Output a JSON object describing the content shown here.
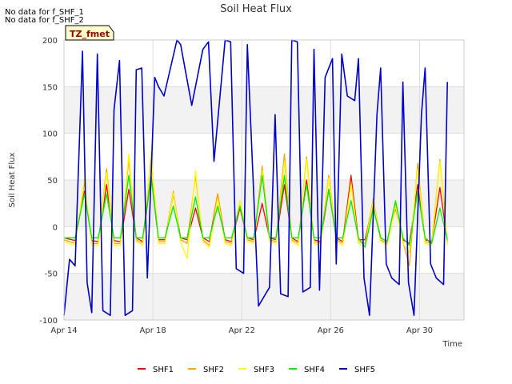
{
  "notes": [
    "No data for f_SHF_1",
    "No data for f_SHF_2"
  ],
  "badge": "TZ_fmet",
  "chart_data": {
    "type": "line",
    "title": "Soil Heat Flux",
    "xlabel": "Time",
    "ylabel": "Soil Heat Flux",
    "ylim": [
      -100,
      200
    ],
    "xlim": [
      "2024-04-14",
      "2024-05-02"
    ],
    "x_ticks": [
      "Apr 14",
      "Apr 18",
      "Apr 22",
      "Apr 26",
      "Apr 30"
    ],
    "y_ticks": [
      -100,
      -50,
      0,
      50,
      100,
      150,
      200
    ],
    "grid": true,
    "legend_position": "bottom",
    "series": [
      {
        "name": "SHF1",
        "color": "#ff0000",
        "x": [
          "2024-04-14",
          "2024-04-14T12:00",
          "2024-04-14T22:00",
          "2024-04-15T06:00",
          "2024-04-15T13:00",
          "2024-04-15T22:00",
          "2024-04-16T06:00",
          "2024-04-16T13:00",
          "2024-04-16T22:00",
          "2024-04-17T06:00",
          "2024-04-17T13:00",
          "2024-04-17T22:00",
          "2024-04-18T06:00",
          "2024-04-18T13:00",
          "2024-04-18T22:00",
          "2024-04-19T06:00",
          "2024-04-19T13:00",
          "2024-04-19T22:00",
          "2024-04-20T06:00",
          "2024-04-20T13:00",
          "2024-04-20T22:00",
          "2024-04-21T06:00",
          "2024-04-21T13:00",
          "2024-04-21T22:00",
          "2024-04-22T06:00",
          "2024-04-22T13:00",
          "2024-04-22T22:00",
          "2024-04-23T06:00",
          "2024-04-23T13:00",
          "2024-04-23T22:00",
          "2024-04-24T06:00",
          "2024-04-24T13:00",
          "2024-04-24T22:00",
          "2024-04-25T06:00",
          "2024-04-25T13:00",
          "2024-04-25T22:00",
          "2024-04-26T06:00",
          "2024-04-26T13:00",
          "2024-04-26T22:00",
          "2024-04-27T06:00",
          "2024-04-27T13:00",
          "2024-04-27T22:00",
          "2024-04-28T06:00",
          "2024-04-28T13:00",
          "2024-04-28T22:00",
          "2024-04-29T06:00",
          "2024-04-29T13:00",
          "2024-04-29T22:00",
          "2024-04-30T06:00",
          "2024-04-30T13:00",
          "2024-04-30T22:00",
          "2024-05-01T06:00"
        ],
        "values": [
          -12,
          -15,
          38,
          -15,
          -16,
          45,
          -15,
          -16,
          40,
          -12,
          -16,
          55,
          -14,
          -14,
          35,
          -12,
          -14,
          20,
          -12,
          -16,
          35,
          -14,
          -16,
          20,
          -12,
          -14,
          25,
          -12,
          -14,
          45,
          -12,
          -16,
          50,
          -14,
          -16,
          40,
          -12,
          -16,
          55,
          -14,
          -14,
          25,
          -12,
          -16,
          20,
          -14,
          -18,
          45,
          -14,
          -16,
          42,
          -16
        ]
      },
      {
        "name": "SHF2",
        "color": "#ffa500",
        "x": [
          "2024-04-14",
          "2024-04-14T12:00",
          "2024-04-14T22:00",
          "2024-04-15T06:00",
          "2024-04-15T13:00",
          "2024-04-15T22:00",
          "2024-04-16T06:00",
          "2024-04-16T13:00",
          "2024-04-16T22:00",
          "2024-04-17T06:00",
          "2024-04-17T13:00",
          "2024-04-17T22:00",
          "2024-04-18T06:00",
          "2024-04-18T13:00",
          "2024-04-18T22:00",
          "2024-04-19T06:00",
          "2024-04-19T13:00",
          "2024-04-19T22:00",
          "2024-04-20T06:00",
          "2024-04-20T13:00",
          "2024-04-20T22:00",
          "2024-04-21T06:00",
          "2024-04-21T13:00",
          "2024-04-21T22:00",
          "2024-04-22T06:00",
          "2024-04-22T13:00",
          "2024-04-22T22:00",
          "2024-04-23T06:00",
          "2024-04-23T13:00",
          "2024-04-23T22:00",
          "2024-04-24T06:00",
          "2024-04-24T13:00",
          "2024-04-24T22:00",
          "2024-04-25T06:00",
          "2024-04-25T13:00",
          "2024-04-25T22:00",
          "2024-04-26T06:00",
          "2024-04-26T13:00",
          "2024-04-26T22:00",
          "2024-04-27T06:00",
          "2024-04-27T13:00",
          "2024-04-27T22:00",
          "2024-04-28T06:00",
          "2024-04-28T13:00",
          "2024-04-28T22:00",
          "2024-04-29T06:00",
          "2024-04-29T13:00",
          "2024-04-29T22:00",
          "2024-04-30T06:00",
          "2024-04-30T13:00",
          "2024-04-30T22:00",
          "2024-05-01T06:00"
        ],
        "values": [
          -14,
          -18,
          48,
          -18,
          -18,
          62,
          -18,
          -18,
          72,
          -14,
          -18,
          75,
          -16,
          -16,
          38,
          -14,
          -18,
          55,
          -14,
          -20,
          35,
          -16,
          -18,
          28,
          -14,
          -16,
          65,
          -14,
          -16,
          78,
          -14,
          -18,
          75,
          -16,
          -18,
          55,
          -14,
          -18,
          48,
          -16,
          -18,
          30,
          -14,
          -18,
          25,
          -16,
          -42,
          68,
          -16,
          -18,
          72,
          -18
        ]
      },
      {
        "name": "SHF3",
        "color": "#ffff00",
        "x": [
          "2024-04-14",
          "2024-04-14T12:00",
          "2024-04-14T22:00",
          "2024-04-15T06:00",
          "2024-04-15T13:00",
          "2024-04-15T22:00",
          "2024-04-16T06:00",
          "2024-04-16T13:00",
          "2024-04-16T22:00",
          "2024-04-17T06:00",
          "2024-04-17T13:00",
          "2024-04-17T22:00",
          "2024-04-18T06:00",
          "2024-04-18T13:00",
          "2024-04-18T22:00",
          "2024-04-19T06:00",
          "2024-04-19T13:00",
          "2024-04-19T22:00",
          "2024-04-20T06:00",
          "2024-04-20T13:00",
          "2024-04-20T22:00",
          "2024-04-21T06:00",
          "2024-04-21T13:00",
          "2024-04-21T22:00",
          "2024-04-22T06:00",
          "2024-04-22T13:00",
          "2024-04-22T22:00",
          "2024-04-23T06:00",
          "2024-04-23T13:00",
          "2024-04-23T22:00",
          "2024-04-24T06:00",
          "2024-04-24T13:00",
          "2024-04-24T22:00",
          "2024-04-25T06:00",
          "2024-04-25T13:00",
          "2024-04-25T22:00",
          "2024-04-26T06:00",
          "2024-04-26T13:00",
          "2024-04-26T22:00",
          "2024-04-27T06:00",
          "2024-04-27T13:00",
          "2024-04-27T22:00",
          "2024-04-28T06:00",
          "2024-04-28T13:00",
          "2024-04-28T22:00",
          "2024-04-29T06:00",
          "2024-04-29T13:00",
          "2024-04-29T22:00",
          "2024-04-30T06:00",
          "2024-04-30T13:00",
          "2024-04-30T22:00",
          "2024-05-01T06:00"
        ],
        "values": [
          -16,
          -20,
          52,
          -20,
          -20,
          58,
          -20,
          -20,
          78,
          -16,
          -20,
          80,
          -18,
          -18,
          36,
          -16,
          -34,
          60,
          -16,
          -22,
          30,
          -18,
          -20,
          28,
          -16,
          -18,
          60,
          -16,
          -18,
          70,
          -16,
          -20,
          72,
          -18,
          -20,
          52,
          -16,
          -20,
          45,
          -18,
          -22,
          28,
          -16,
          -20,
          22,
          -18,
          -28,
          62,
          -18,
          -20,
          70,
          -20
        ]
      },
      {
        "name": "SHF4",
        "color": "#00ee00",
        "x": [
          "2024-04-14",
          "2024-04-14T12:00",
          "2024-04-14T22:00",
          "2024-04-15T06:00",
          "2024-04-15T13:00",
          "2024-04-15T22:00",
          "2024-04-16T06:00",
          "2024-04-16T13:00",
          "2024-04-16T22:00",
          "2024-04-17T06:00",
          "2024-04-17T13:00",
          "2024-04-17T22:00",
          "2024-04-18T06:00",
          "2024-04-18T13:00",
          "2024-04-18T22:00",
          "2024-04-19T06:00",
          "2024-04-19T13:00",
          "2024-04-19T22:00",
          "2024-04-20T06:00",
          "2024-04-20T13:00",
          "2024-04-20T22:00",
          "2024-04-21T06:00",
          "2024-04-21T13:00",
          "2024-04-21T22:00",
          "2024-04-22T06:00",
          "2024-04-22T13:00",
          "2024-04-22T22:00",
          "2024-04-23T06:00",
          "2024-04-23T13:00",
          "2024-04-23T22:00",
          "2024-04-24T06:00",
          "2024-04-24T13:00",
          "2024-04-24T22:00",
          "2024-04-25T06:00",
          "2024-04-25T13:00",
          "2024-04-25T22:00",
          "2024-04-26T06:00",
          "2024-04-26T13:00",
          "2024-04-26T22:00",
          "2024-04-27T06:00",
          "2024-04-27T13:00",
          "2024-04-27T22:00",
          "2024-04-28T06:00",
          "2024-04-28T13:00",
          "2024-04-28T22:00",
          "2024-04-29T06:00",
          "2024-04-29T13:00",
          "2024-04-29T22:00",
          "2024-04-30T06:00",
          "2024-04-30T13:00",
          "2024-04-30T22:00",
          "2024-05-01T06:00"
        ],
        "values": [
          -12,
          -12,
          35,
          -12,
          -12,
          35,
          -12,
          -12,
          55,
          -12,
          -12,
          55,
          -12,
          -12,
          22,
          -12,
          -12,
          32,
          -12,
          -12,
          22,
          -12,
          -12,
          22,
          -12,
          -12,
          55,
          -12,
          -12,
          55,
          -12,
          -12,
          45,
          -12,
          -12,
          40,
          -12,
          -12,
          28,
          -12,
          -22,
          20,
          -12,
          -16,
          28,
          -12,
          -20,
          38,
          -12,
          -18,
          20,
          -14
        ]
      },
      {
        "name": "SHF5",
        "color": "#0000cc",
        "x": [
          "2024-04-14",
          "2024-04-14T06:00",
          "2024-04-14T12:00",
          "2024-04-14T20:00",
          "2024-04-15T01:00",
          "2024-04-15T06:00",
          "2024-04-15T12:00",
          "2024-04-15T18:00",
          "2024-04-16T02:00",
          "2024-04-16T06:00",
          "2024-04-16T12:00",
          "2024-04-16T18:00",
          "2024-04-17T02:00",
          "2024-04-17T06:00",
          "2024-04-17T12:00",
          "2024-04-17T18:00",
          "2024-04-18T02:00",
          "2024-04-18T06:00",
          "2024-04-18T12:00",
          "2024-04-19T02:00",
          "2024-04-19T06:00",
          "2024-04-19T18:00",
          "2024-04-20T06:00",
          "2024-04-20T12:00",
          "2024-04-20T18:00",
          "2024-04-21T06:00",
          "2024-04-21T12:00",
          "2024-04-21T18:00",
          "2024-04-22T02:00",
          "2024-04-22T06:00",
          "2024-04-22T18:00",
          "2024-04-23T06:00",
          "2024-04-23T12:00",
          "2024-04-23T18:00",
          "2024-04-24T02:00",
          "2024-04-24T06:00",
          "2024-04-24T12:00",
          "2024-04-24T18:00",
          "2024-04-25T02:00",
          "2024-04-25T06:00",
          "2024-04-25T12:00",
          "2024-04-25T18:00",
          "2024-04-26T02:00",
          "2024-04-26T06:00",
          "2024-04-26T12:00",
          "2024-04-26T18:00",
          "2024-04-27T02:00",
          "2024-04-27T06:00",
          "2024-04-27T12:00",
          "2024-04-27T18:00",
          "2024-04-28T02:00",
          "2024-04-28T06:00",
          "2024-04-28T12:00",
          "2024-04-28T18:00",
          "2024-04-29T02:00",
          "2024-04-29T06:00",
          "2024-04-29T12:00",
          "2024-04-29T18:00",
          "2024-04-30T02:00",
          "2024-04-30T06:00",
          "2024-04-30T12:00",
          "2024-04-30T18:00",
          "2024-05-01T02:00",
          "2024-05-01T06:00"
        ],
        "values": [
          -95,
          -35,
          -42,
          188,
          -60,
          -92,
          185,
          -90,
          -95,
          125,
          178,
          -95,
          -90,
          168,
          170,
          -55,
          160,
          150,
          140,
          200,
          195,
          130,
          190,
          198,
          70,
          200,
          198,
          -45,
          -50,
          195,
          -85,
          -65,
          120,
          -72,
          -75,
          200,
          198,
          -70,
          -65,
          190,
          -68,
          160,
          180,
          -40,
          185,
          140,
          135,
          180,
          -55,
          -95,
          120,
          170,
          -40,
          -55,
          -62,
          155,
          -60,
          -95,
          120,
          170,
          -40,
          -55,
          -62,
          155
        ]
      }
    ]
  },
  "legend_marker_colors": [
    "#ff0000",
    "#ffa500",
    "#ffff00",
    "#00ee00",
    "#0000cc"
  ]
}
